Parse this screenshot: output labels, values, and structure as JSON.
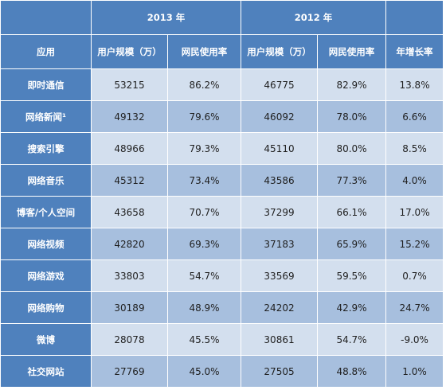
{
  "header": {
    "year_2013": "2013 年",
    "year_2012": "2012 年",
    "col_app": "应用",
    "col_users": "用户规模（万）",
    "col_rate": "网民使用率",
    "col_growth": "年增长率"
  },
  "rows": [
    {
      "app": "即时通信",
      "u2013": "53215",
      "r2013": "86.2%",
      "u2012": "46775",
      "r2012": "82.9%",
      "growth": "13.8%"
    },
    {
      "app": "网络新闻¹",
      "u2013": "49132",
      "r2013": "79.6%",
      "u2012": "46092",
      "r2012": "78.0%",
      "growth": "6.6%"
    },
    {
      "app": "搜索引擎",
      "u2013": "48966",
      "r2013": "79.3%",
      "u2012": "45110",
      "r2012": "80.0%",
      "growth": "8.5%"
    },
    {
      "app": "网络音乐",
      "u2013": "45312",
      "r2013": "73.4%",
      "u2012": "43586",
      "r2012": "77.3%",
      "growth": "4.0%"
    },
    {
      "app": "博客/个人空间",
      "u2013": "43658",
      "r2013": "70.7%",
      "u2012": "37299",
      "r2012": "66.1%",
      "growth": "17.0%"
    },
    {
      "app": "网络视频",
      "u2013": "42820",
      "r2013": "69.3%",
      "u2012": "37183",
      "r2012": "65.9%",
      "growth": "15.2%"
    },
    {
      "app": "网络游戏",
      "u2013": "33803",
      "r2013": "54.7%",
      "u2012": "33569",
      "r2012": "59.5%",
      "growth": "0.7%"
    },
    {
      "app": "网络购物",
      "u2013": "30189",
      "r2013": "48.9%",
      "u2012": "24202",
      "r2012": "42.9%",
      "growth": "24.7%"
    },
    {
      "app": "微博",
      "u2013": "28078",
      "r2013": "45.5%",
      "u2012": "30861",
      "r2012": "54.7%",
      "growth": "-9.0%"
    },
    {
      "app": "社交网站",
      "u2013": "27769",
      "r2013": "45.0%",
      "u2012": "27505",
      "r2012": "48.8%",
      "growth": "1.0%"
    }
  ]
}
